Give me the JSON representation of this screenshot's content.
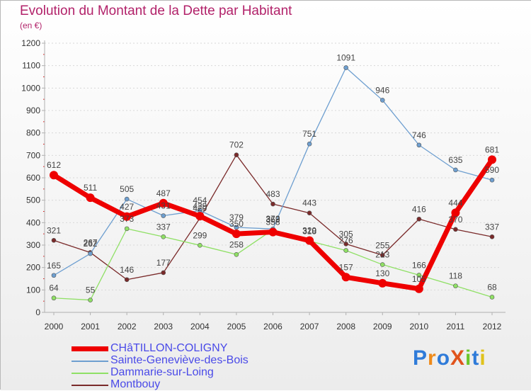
{
  "header": {
    "title": "Evolution du Montant de la Dette par Habitant",
    "subtitle": "(en €)"
  },
  "logo": {
    "text": "ProXiti"
  },
  "colors": {
    "title": "#b2226a",
    "axis": "#b0b0b0",
    "grid": "#d8d8d8",
    "background_top": "#ffffff",
    "background_bottom": "#ececec"
  },
  "chart_data": {
    "type": "line",
    "title": "Evolution du Montant de la Dette par Habitant",
    "subtitle": "(en €)",
    "xlabel": "",
    "ylabel": "",
    "ylim": [
      0,
      1200
    ],
    "yticks": [
      0,
      100,
      200,
      300,
      400,
      500,
      600,
      700,
      800,
      900,
      1000,
      1100,
      1200
    ],
    "grid": "horizontal dashed",
    "legend_position": "bottom-left",
    "categories": [
      "2000",
      "2001",
      "2002",
      "2003",
      "2004",
      "2005",
      "2006",
      "2007",
      "2008",
      "2009",
      "2010",
      "2011",
      "2012"
    ],
    "series": [
      {
        "name": "CHâTILLON-COLIGNY",
        "color": "#ee0000",
        "legend_color": "#4a4ae8",
        "width": 7,
        "marker": 6,
        "values": [
          612,
          511,
          427,
          487,
          429,
          350,
          358,
          320,
          157,
          130,
          105,
          444,
          681
        ]
      },
      {
        "name": "Sainte-Geneviève-des-Bois",
        "color": "#6e9fd0",
        "legend_color": "#4a4ae8",
        "width": 1.3,
        "marker": 3,
        "values": [
          165,
          262,
          505,
          431,
          454,
          379,
          372,
          751,
          1091,
          946,
          746,
          635,
          590
        ]
      },
      {
        "name": "Dammarie-sur-Loing",
        "color": "#8fe065",
        "legend_color": "#4a4ae8",
        "width": 1.3,
        "marker": 3,
        "values": [
          64,
          55,
          373,
          337,
          299,
          258,
          369,
          318,
          276,
          213,
          166,
          118,
          68
        ]
      },
      {
        "name": "Montbouy",
        "color": "#7a2a2a",
        "legend_color": "#4a4ae8",
        "width": 1.3,
        "marker": 3,
        "values": [
          321,
          267,
          146,
          177,
          420,
          702,
          483,
          443,
          305,
          255,
          416,
          370,
          337
        ]
      }
    ]
  }
}
